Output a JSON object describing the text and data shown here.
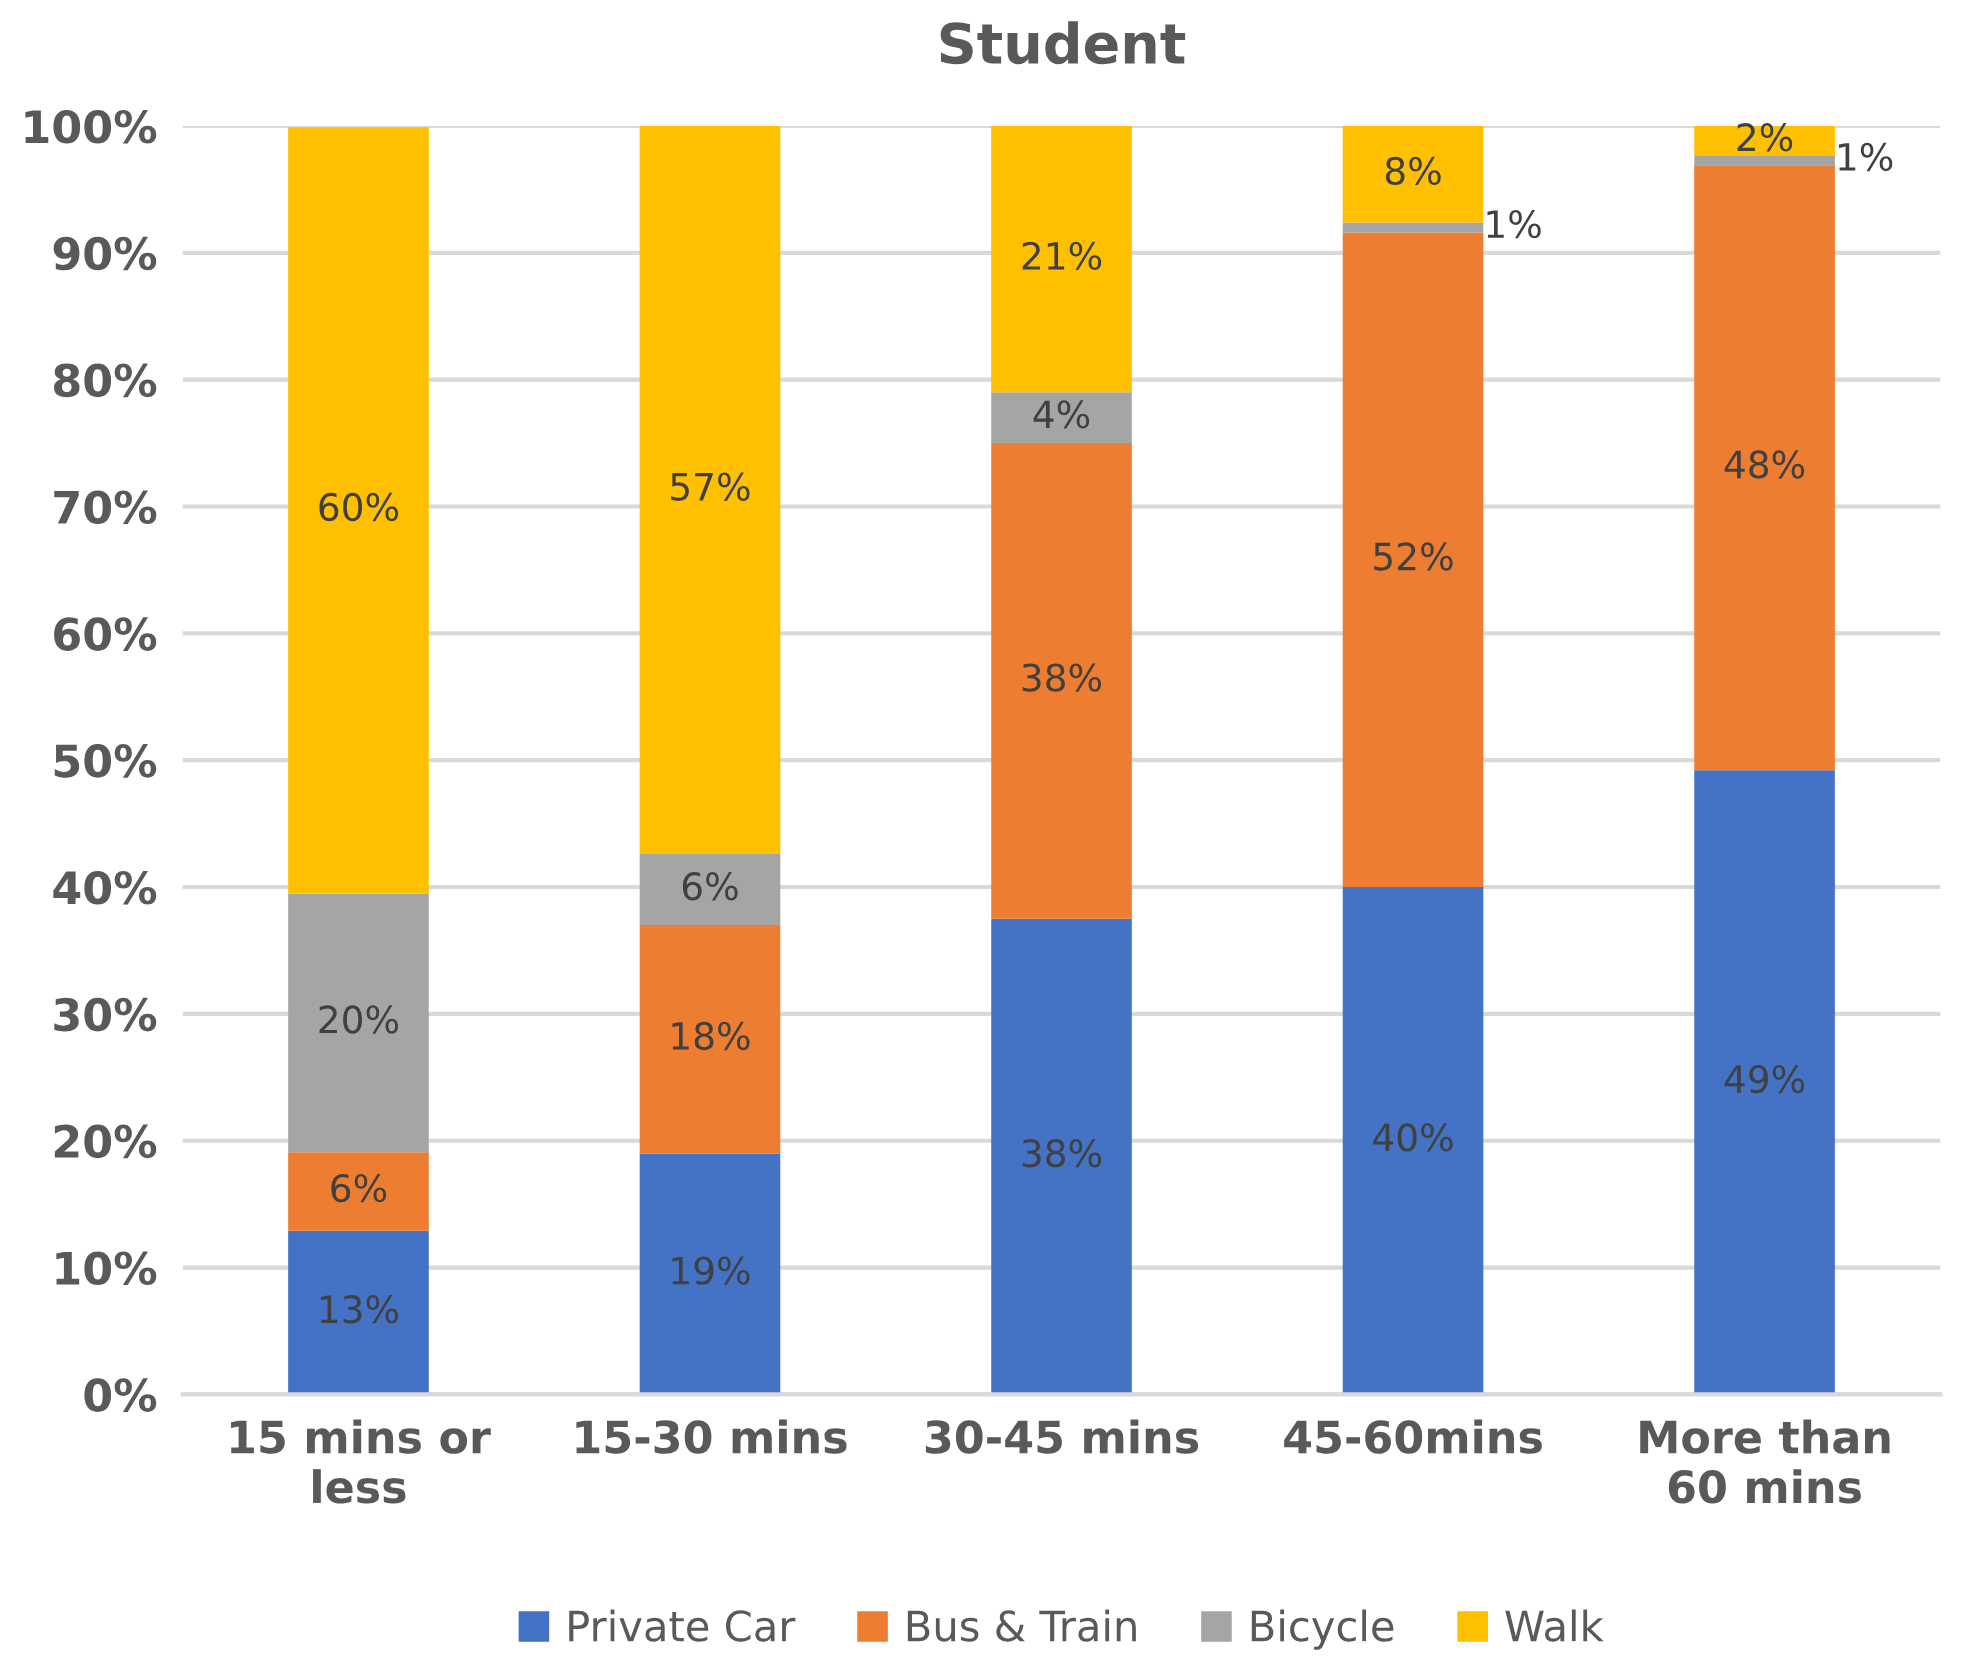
{
  "chart_data": {
    "type": "bar",
    "title": "Student",
    "stacked": true,
    "categories": [
      "15 mins or\nless",
      "15-30 mins",
      "30-45 mins",
      "45-60mins",
      "More than\n60 mins"
    ],
    "series": [
      {
        "name": "Private Car",
        "color": "#4472c4",
        "values": [
          12.9,
          19,
          37.5,
          40,
          49.2
        ],
        "value_labels": [
          "13%",
          "19%",
          "38%",
          "40%",
          "49%"
        ]
      },
      {
        "name": "Bus & Train",
        "color": "#ed7d31",
        "values": [
          6.2,
          18,
          37.5,
          51.6,
          47.7
        ],
        "value_labels": [
          "6%",
          "18%",
          "38%",
          "52%",
          "48%"
        ]
      },
      {
        "name": "Bicycle",
        "color": "#a5a5a5",
        "values": [
          20.4,
          5.6,
          4,
          0.8,
          0.8
        ],
        "value_labels": [
          "20%",
          "6%",
          "4%",
          "1%",
          "1%"
        ]
      },
      {
        "name": "Walk",
        "color": "#ffc000",
        "values": [
          60.4,
          57.4,
          21,
          7.6,
          2.3
        ],
        "value_labels": [
          "60%",
          "57%",
          "21%",
          "8%",
          "2%"
        ]
      }
    ],
    "ylim": [
      0,
      100
    ],
    "yticks": [
      {
        "value": 0,
        "label": "0%"
      },
      {
        "value": 10,
        "label": "10%"
      },
      {
        "value": 20,
        "label": "20%"
      },
      {
        "value": 30,
        "label": "30%"
      },
      {
        "value": 40,
        "label": "40%"
      },
      {
        "value": 50,
        "label": "50%"
      },
      {
        "value": 60,
        "label": "60%"
      },
      {
        "value": 70,
        "label": "70%"
      },
      {
        "value": 80,
        "label": "80%"
      },
      {
        "value": 90,
        "label": "90%"
      },
      {
        "value": 100,
        "label": "100%"
      }
    ],
    "grid": "y",
    "legend": "bottom"
  }
}
